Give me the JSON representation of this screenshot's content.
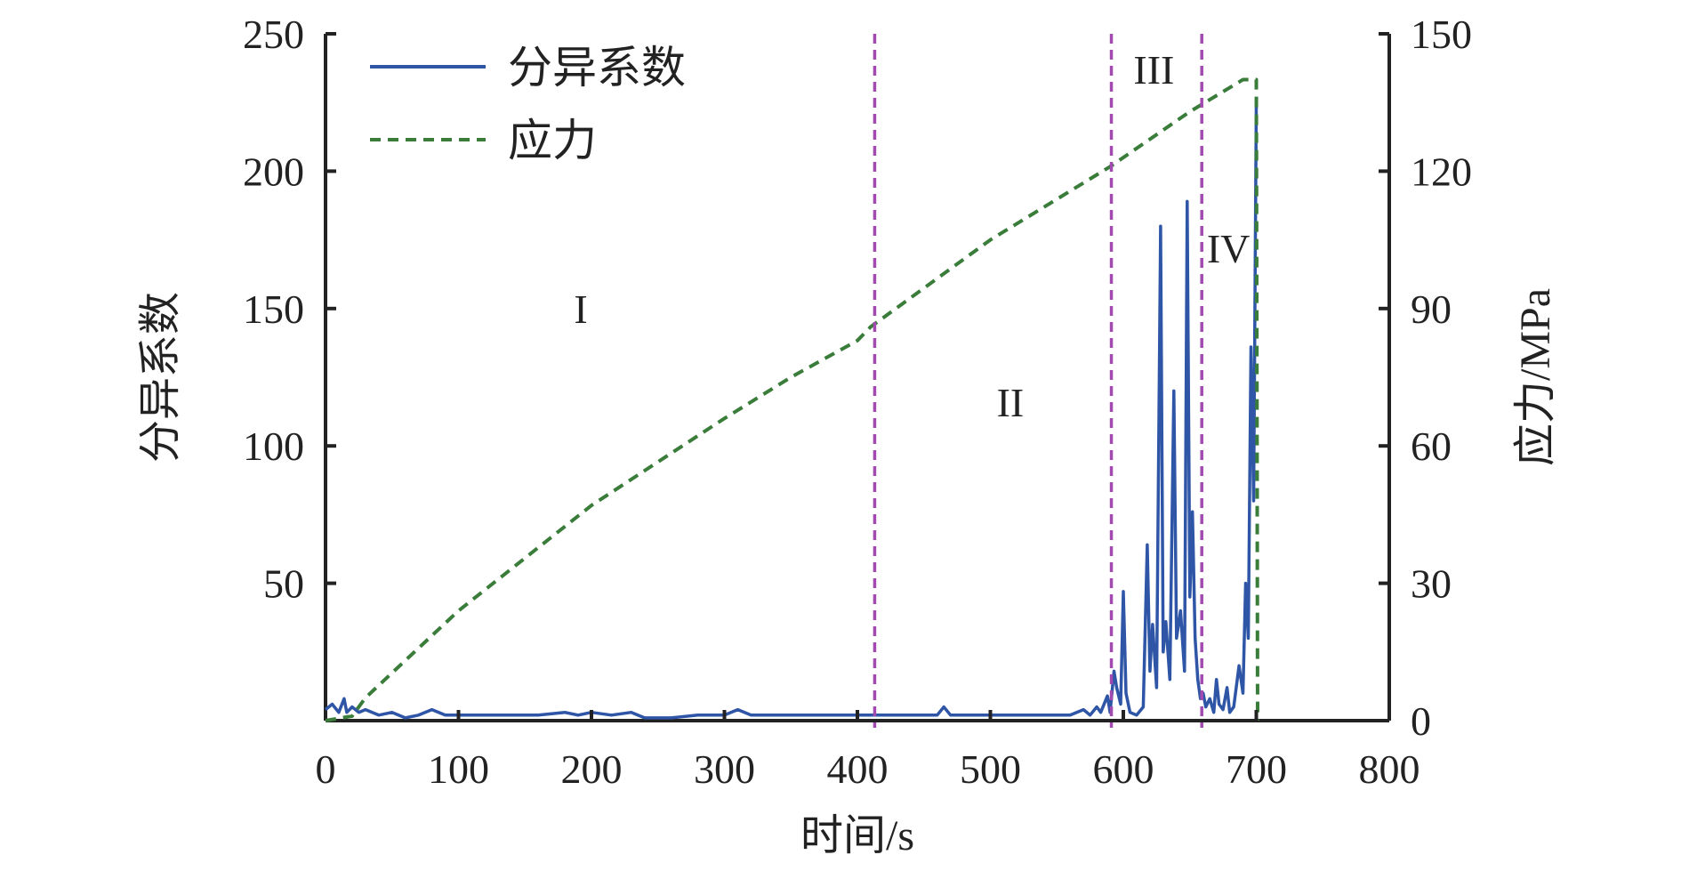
{
  "chart_data": {
    "type": "line",
    "xlabel": "时间/s",
    "ylabel": "分异系数",
    "y2label": "应力/MPa",
    "xlim": [
      0,
      800
    ],
    "ylim": [
      0,
      250
    ],
    "y2lim": [
      0,
      150
    ],
    "x_ticks": [
      0,
      100,
      200,
      300,
      400,
      500,
      600,
      700,
      800
    ],
    "y_ticks": [
      50,
      100,
      150,
      200,
      250
    ],
    "y2_ticks": [
      0,
      30,
      60,
      90,
      120,
      150
    ],
    "grid": false,
    "legend_position": "top-left",
    "legend": [
      "分异系数",
      "应力"
    ],
    "series": [
      {
        "name": "分异系数",
        "axis": "left",
        "color": "#2e55a6",
        "style": "solid",
        "points": [
          [
            0,
            4
          ],
          [
            5,
            6
          ],
          [
            10,
            3
          ],
          [
            14,
            8
          ],
          [
            16,
            3
          ],
          [
            20,
            5
          ],
          [
            25,
            3
          ],
          [
            30,
            4
          ],
          [
            40,
            2
          ],
          [
            50,
            3
          ],
          [
            60,
            1
          ],
          [
            70,
            2
          ],
          [
            80,
            4
          ],
          [
            90,
            2
          ],
          [
            100,
            2
          ],
          [
            120,
            2
          ],
          [
            140,
            2
          ],
          [
            160,
            2
          ],
          [
            180,
            3
          ],
          [
            190,
            2
          ],
          [
            200,
            3
          ],
          [
            215,
            2
          ],
          [
            230,
            3
          ],
          [
            240,
            1
          ],
          [
            260,
            1
          ],
          [
            280,
            2
          ],
          [
            300,
            2
          ],
          [
            310,
            4
          ],
          [
            320,
            2
          ],
          [
            340,
            2
          ],
          [
            360,
            2
          ],
          [
            380,
            2
          ],
          [
            400,
            2
          ],
          [
            420,
            2
          ],
          [
            440,
            2
          ],
          [
            460,
            2
          ],
          [
            465,
            5
          ],
          [
            470,
            2
          ],
          [
            500,
            2
          ],
          [
            520,
            2
          ],
          [
            540,
            2
          ],
          [
            560,
            2
          ],
          [
            570,
            4
          ],
          [
            575,
            2
          ],
          [
            580,
            5
          ],
          [
            583,
            3
          ],
          [
            588,
            9
          ],
          [
            590,
            3
          ],
          [
            593,
            18
          ],
          [
            595,
            12
          ],
          [
            598,
            6
          ],
          [
            600,
            47
          ],
          [
            602,
            10
          ],
          [
            605,
            3
          ],
          [
            610,
            2
          ],
          [
            615,
            5
          ],
          [
            618,
            64
          ],
          [
            620,
            18
          ],
          [
            622,
            35
          ],
          [
            625,
            12
          ],
          [
            628,
            180
          ],
          [
            630,
            25
          ],
          [
            632,
            36
          ],
          [
            635,
            15
          ],
          [
            638,
            120
          ],
          [
            640,
            30
          ],
          [
            643,
            40
          ],
          [
            646,
            18
          ],
          [
            648,
            189
          ],
          [
            650,
            45
          ],
          [
            652,
            76
          ],
          [
            654,
            30
          ],
          [
            656,
            15
          ],
          [
            658,
            8
          ],
          [
            660,
            10
          ],
          [
            662,
            5
          ],
          [
            665,
            8
          ],
          [
            668,
            3
          ],
          [
            670,
            15
          ],
          [
            672,
            6
          ],
          [
            675,
            4
          ],
          [
            678,
            12
          ],
          [
            680,
            3
          ],
          [
            683,
            5
          ],
          [
            687,
            20
          ],
          [
            690,
            10
          ],
          [
            692,
            50
          ],
          [
            694,
            30
          ],
          [
            696,
            136
          ],
          [
            698,
            80
          ],
          [
            700,
            225
          ]
        ]
      },
      {
        "name": "应力",
        "axis": "right",
        "color": "#3a7d3a",
        "style": "dashed",
        "points": [
          [
            0,
            0
          ],
          [
            20,
            1
          ],
          [
            30,
            5
          ],
          [
            100,
            24
          ],
          [
            200,
            47
          ],
          [
            300,
            66
          ],
          [
            350,
            75
          ],
          [
            400,
            83
          ],
          [
            410,
            86
          ],
          [
            500,
            105
          ],
          [
            590,
            121
          ],
          [
            650,
            133
          ],
          [
            690,
            140
          ],
          [
            700,
            140
          ],
          [
            701,
            0
          ]
        ]
      }
    ],
    "boundaries": [
      413,
      591,
      659
    ],
    "stage_labels": [
      {
        "text": "I",
        "x": 192,
        "y": 150
      },
      {
        "text": "II",
        "x": 515,
        "y": 116
      },
      {
        "text": "III",
        "x": 623,
        "y": 237
      },
      {
        "text": "IV",
        "x": 679,
        "y": 172
      }
    ],
    "colors": {
      "boundary": "#a24ab0",
      "axis": "#222222"
    }
  }
}
